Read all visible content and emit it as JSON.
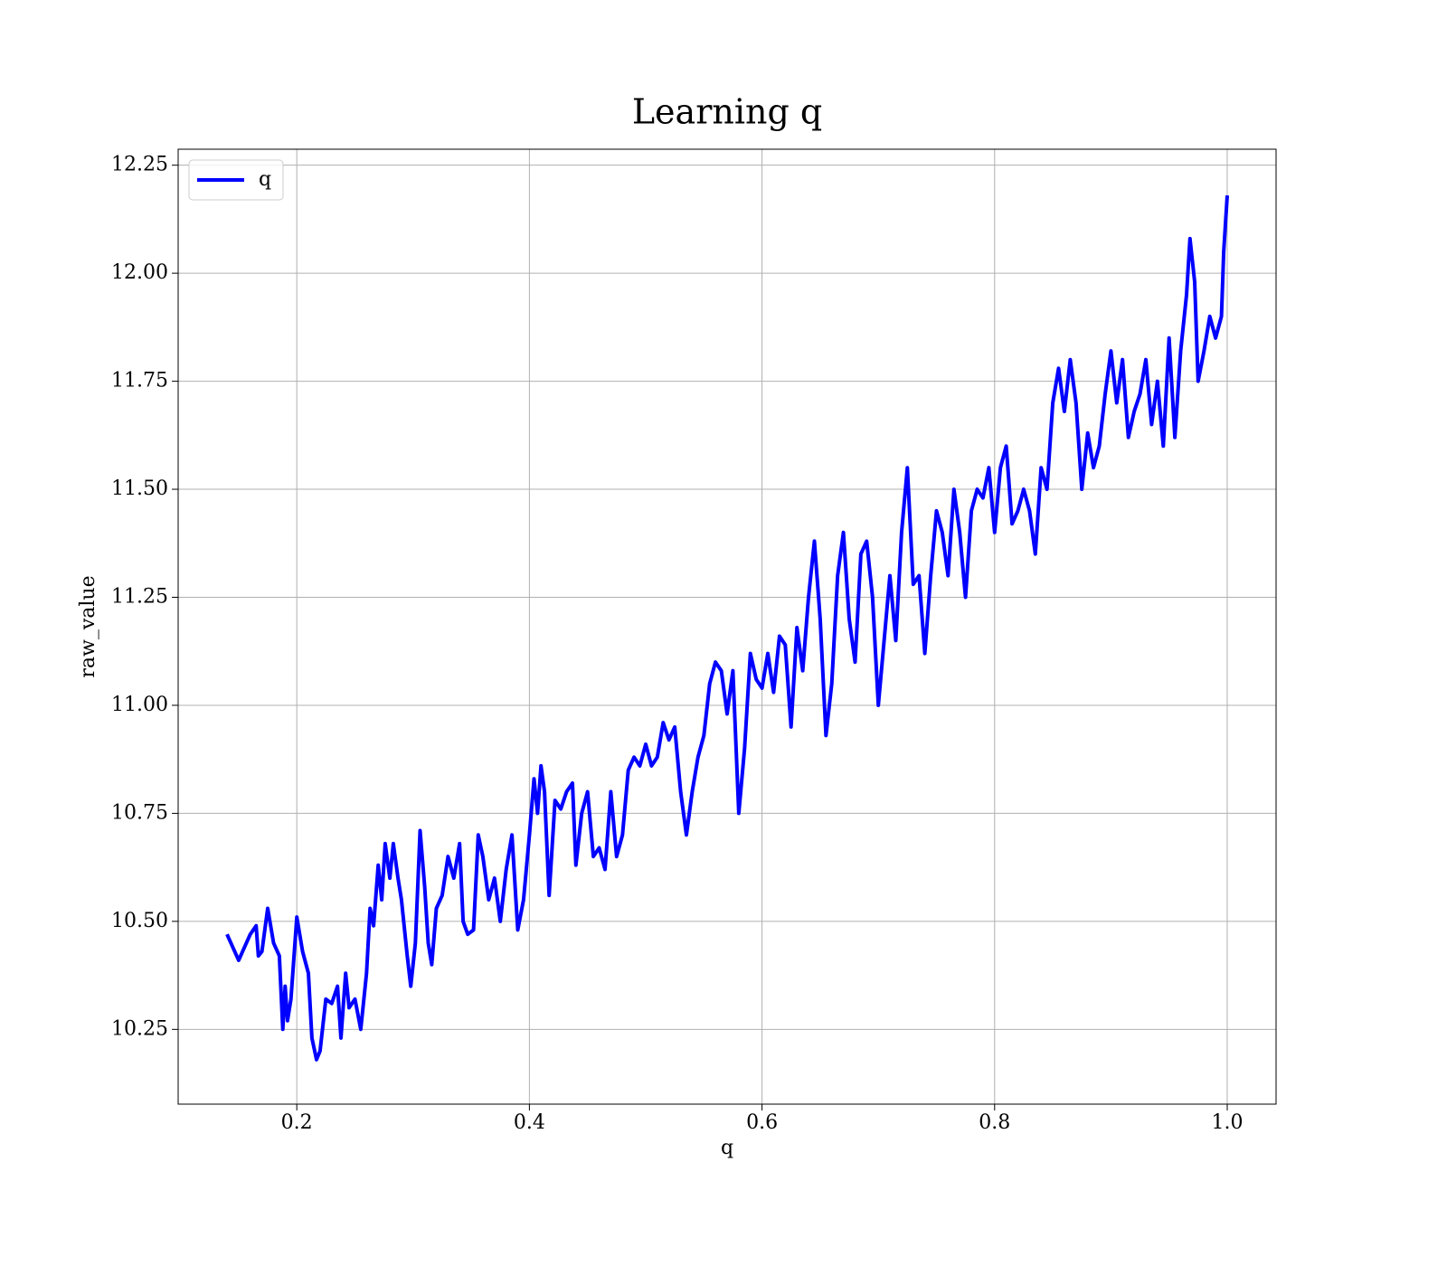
{
  "chart_data": {
    "type": "line",
    "title": "Learning q",
    "xlabel": "q",
    "ylabel": "raw_value",
    "xlim": [
      0.098,
      1.042
    ],
    "ylim": [
      10.077,
      12.287
    ],
    "xticks": [
      0.2,
      0.4,
      0.6,
      0.8,
      {
        "value": 1,
        "label": "1.0"
      }
    ],
    "yticks": [
      10.25,
      {
        "value": 10.5,
        "label": "10.50"
      },
      10.75,
      {
        "value": 11,
        "label": "11.00"
      },
      11.25,
      {
        "value": 11.5,
        "label": "11.50"
      },
      11.75,
      {
        "value": 12,
        "label": "12.00"
      },
      12.25
    ],
    "grid": true,
    "legend": "upper left",
    "x": [
      0.14,
      0.15,
      0.16,
      0.165,
      0.167,
      0.17,
      0.175,
      0.18,
      0.185,
      0.188,
      0.19,
      0.192,
      0.195,
      0.2,
      0.205,
      0.21,
      0.213,
      0.217,
      0.22,
      0.225,
      0.23,
      0.235,
      0.238,
      0.242,
      0.245,
      0.25,
      0.255,
      0.26,
      0.263,
      0.266,
      0.27,
      0.273,
      0.276,
      0.28,
      0.283,
      0.287,
      0.29,
      0.295,
      0.298,
      0.302,
      0.306,
      0.31,
      0.313,
      0.316,
      0.32,
      0.325,
      0.33,
      0.335,
      0.34,
      0.343,
      0.347,
      0.352,
      0.356,
      0.36,
      0.365,
      0.37,
      0.375,
      0.38,
      0.385,
      0.39,
      0.395,
      0.4,
      0.404,
      0.407,
      0.41,
      0.413,
      0.417,
      0.422,
      0.427,
      0.432,
      0.437,
      0.44,
      0.445,
      0.45,
      0.455,
      0.46,
      0.465,
      0.47,
      0.475,
      0.48,
      0.485,
      0.49,
      0.495,
      0.5,
      0.505,
      0.51,
      0.515,
      0.52,
      0.525,
      0.53,
      0.535,
      0.54,
      0.545,
      0.55,
      0.555,
      0.56,
      0.565,
      0.57,
      0.575,
      0.58,
      0.585,
      0.59,
      0.595,
      0.6,
      0.605,
      0.61,
      0.615,
      0.62,
      0.625,
      0.63,
      0.635,
      0.64,
      0.645,
      0.65,
      0.655,
      0.66,
      0.665,
      0.67,
      0.675,
      0.68,
      0.685,
      0.69,
      0.695,
      0.7,
      0.705,
      0.71,
      0.715,
      0.72,
      0.725,
      0.73,
      0.735,
      0.74,
      0.745,
      0.75,
      0.755,
      0.76,
      0.765,
      0.77,
      0.775,
      0.78,
      0.785,
      0.79,
      0.795,
      0.8,
      0.805,
      0.81,
      0.815,
      0.82,
      0.825,
      0.83,
      0.835,
      0.84,
      0.845,
      0.85,
      0.855,
      0.86,
      0.865,
      0.87,
      0.875,
      0.88,
      0.885,
      0.89,
      0.895,
      0.9,
      0.905,
      0.91,
      0.915,
      0.92,
      0.925,
      0.93,
      0.935,
      0.94,
      0.945,
      0.95,
      0.955,
      0.96,
      0.965,
      0.968,
      0.972,
      0.975,
      0.98,
      0.985,
      0.99,
      0.995,
      0.997,
      1.0
    ],
    "series": [
      {
        "name": "q",
        "color": "#0000ff",
        "values": [
          10.47,
          10.41,
          10.47,
          10.49,
          10.42,
          10.43,
          10.53,
          10.45,
          10.42,
          10.25,
          10.35,
          10.27,
          10.32,
          10.51,
          10.43,
          10.38,
          10.23,
          10.18,
          10.2,
          10.32,
          10.31,
          10.35,
          10.23,
          10.38,
          10.3,
          10.32,
          10.25,
          10.38,
          10.53,
          10.49,
          10.63,
          10.55,
          10.68,
          10.6,
          10.68,
          10.6,
          10.55,
          10.42,
          10.35,
          10.45,
          10.71,
          10.58,
          10.45,
          10.4,
          10.53,
          10.56,
          10.65,
          10.6,
          10.68,
          10.5,
          10.47,
          10.48,
          10.7,
          10.65,
          10.55,
          10.6,
          10.5,
          10.62,
          10.7,
          10.48,
          10.55,
          10.7,
          10.83,
          10.75,
          10.86,
          10.8,
          10.56,
          10.78,
          10.76,
          10.8,
          10.82,
          10.63,
          10.75,
          10.8,
          10.65,
          10.67,
          10.62,
          10.8,
          10.65,
          10.7,
          10.85,
          10.88,
          10.86,
          10.91,
          10.86,
          10.88,
          10.96,
          10.92,
          10.95,
          10.8,
          10.7,
          10.8,
          10.88,
          10.93,
          11.05,
          11.1,
          11.08,
          10.98,
          11.08,
          10.75,
          10.9,
          11.12,
          11.06,
          11.04,
          11.12,
          11.03,
          11.16,
          11.14,
          10.95,
          11.18,
          11.08,
          11.25,
          11.38,
          11.2,
          10.93,
          11.05,
          11.3,
          11.4,
          11.2,
          11.1,
          11.35,
          11.38,
          11.25,
          11.0,
          11.15,
          11.3,
          11.15,
          11.4,
          11.55,
          11.28,
          11.3,
          11.12,
          11.3,
          11.45,
          11.4,
          11.3,
          11.5,
          11.4,
          11.25,
          11.45,
          11.5,
          11.48,
          11.55,
          11.4,
          11.55,
          11.6,
          11.42,
          11.45,
          11.5,
          11.45,
          11.35,
          11.55,
          11.5,
          11.7,
          11.78,
          11.68,
          11.8,
          11.7,
          11.5,
          11.63,
          11.55,
          11.6,
          11.72,
          11.82,
          11.7,
          11.8,
          11.62,
          11.68,
          11.72,
          11.8,
          11.65,
          11.75,
          11.6,
          11.85,
          11.62,
          11.82,
          11.95,
          12.08,
          11.98,
          11.75,
          11.82,
          11.9,
          11.85,
          11.9,
          12.05,
          12.18
        ]
      }
    ]
  }
}
